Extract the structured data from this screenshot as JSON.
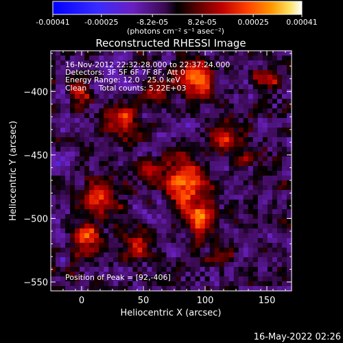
{
  "colorbar": {
    "tick_labels": [
      "-0.00041",
      "-0.00025",
      "-8.2e-05",
      "8.2e-05",
      "0.00025",
      "0.00041"
    ],
    "tick_values": [
      -0.00041,
      -0.00025,
      -8.2e-05,
      8.2e-05,
      0.00025,
      0.00041
    ],
    "range": [
      -0.00041,
      0.00041
    ],
    "unit_label": "(photons cm⁻² s⁻¹ asec⁻²)"
  },
  "chart_data": {
    "type": "heatmap",
    "title": "Reconstructed RHESSI Image",
    "xlabel": "Heliocentric X (arcsec)",
    "ylabel": "Heliocentric Y (arcsec)",
    "xlim": [
      -25,
      170
    ],
    "ylim": [
      -557,
      -368
    ],
    "x_ticks": [
      0,
      50,
      100,
      150
    ],
    "y_ticks": [
      -400,
      -450,
      -500,
      -550
    ],
    "x_tick_labels": [
      "0",
      "50",
      "100",
      "150"
    ],
    "y_tick_labels": [
      "−400",
      "−450",
      "−500",
      "−550"
    ],
    "annotations": [
      "16-Nov-2012 22:32:28.000 to 22:37:24.000",
      "Detectors: 3F 5F 6F 7F 8F, Att 0",
      "Energy Range: 12.0 - 25.0 keV",
      "Clean     Total counts: 5.22E+03"
    ],
    "peak_label": "Position of Peak = [92,-406]",
    "peak": [
      92,
      -406
    ]
  },
  "footer": {
    "timestamp": "16-May-2022 02:26"
  }
}
